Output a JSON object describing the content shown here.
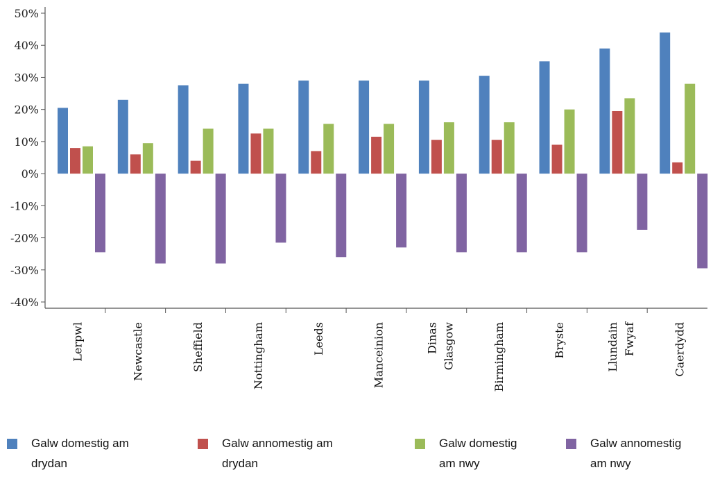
{
  "chart_data": {
    "type": "bar",
    "title": "",
    "xlabel": "",
    "ylabel": "",
    "ylim": [
      -40,
      50
    ],
    "yticks": [
      -40,
      -30,
      -20,
      -10,
      0,
      10,
      20,
      30,
      40,
      50
    ],
    "ytick_labels": [
      "-40%",
      "-30%",
      "-20%",
      "-10%",
      "0%",
      "10%",
      "20%",
      "30%",
      "40%",
      "50%"
    ],
    "grid": false,
    "legend_position": "bottom",
    "categories": [
      "Lerpwl",
      "Newcastle",
      "Sheffield",
      "Nottingham",
      "Leeds",
      "Manceinion",
      "Dinas Glasgow",
      "Birmingham",
      "Bryste",
      "Llundain Fwyaf",
      "Caerdydd"
    ],
    "series": [
      {
        "name": "Galw domestig am drydan",
        "color": "#4f81bd",
        "values": [
          20.5,
          23,
          27.5,
          28,
          29,
          29,
          29,
          30.5,
          35,
          39,
          44
        ]
      },
      {
        "name": "Galw annomestig am drydan",
        "color": "#c0504d",
        "values": [
          8,
          6,
          4,
          12.5,
          7,
          11.5,
          10.5,
          10.5,
          9,
          19.5,
          3.5
        ]
      },
      {
        "name": "Galw domestig am nwy",
        "color": "#9bbb59",
        "values": [
          8.5,
          9.5,
          14,
          14,
          15.5,
          15.5,
          16,
          16,
          20,
          23.5,
          28
        ]
      },
      {
        "name": "Galw annomestig am nwy",
        "color": "#8064a2",
        "values": [
          -24.5,
          -28,
          -28,
          -21.5,
          -26,
          -23,
          -24.5,
          -24.5,
          -24.5,
          -17.5,
          -29.5
        ]
      }
    ]
  },
  "legend": {
    "items": [
      {
        "line1": "Galw domestig am",
        "line2": "drydan"
      },
      {
        "line1": "Galw annomestig am",
        "line2": "drydan"
      },
      {
        "line1": "Galw domestig",
        "line2": "am nwy"
      },
      {
        "line1": "Galw annomestig",
        "line2": "am nwy"
      }
    ]
  }
}
